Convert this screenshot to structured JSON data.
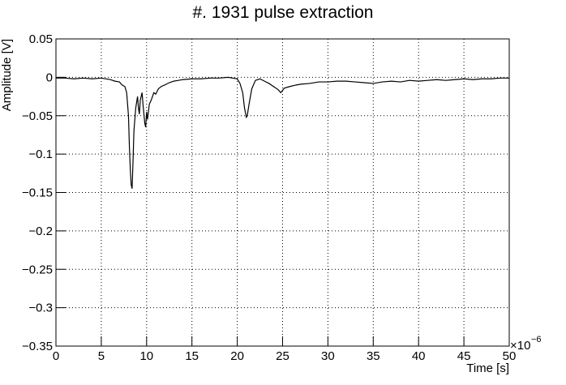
{
  "chart_data": {
    "type": "line",
    "title": "#. 1931 pulse extraction",
    "x_label": "Time [s]",
    "y_label": "Amplitude [V]",
    "x_multiplier": "×10",
    "x_exponent": "−6",
    "color": "#000000",
    "grid": true,
    "x": [
      0,
      1,
      2,
      3,
      4,
      5,
      6,
      6.5,
      7,
      7.3,
      7.6,
      7.8,
      8.0,
      8.1,
      8.2,
      8.3,
      8.4,
      8.5,
      8.6,
      8.8,
      9.0,
      9.1,
      9.2,
      9.3,
      9.5,
      9.6,
      9.8,
      9.9,
      10.0,
      10.1,
      10.3,
      10.5,
      10.8,
      11,
      11.3,
      11.6,
      12,
      12.5,
      13,
      13.5,
      14,
      15,
      16,
      17,
      18,
      19,
      20,
      20.3,
      20.6,
      20.8,
      21.0,
      21.1,
      21.3,
      21.6,
      22,
      22.5,
      23,
      23.5,
      24,
      24.5,
      24.8,
      25.2,
      25.8,
      26.5,
      27,
      28,
      29,
      30,
      31,
      32,
      33,
      34,
      35,
      36,
      37,
      38,
      39,
      40,
      41,
      42,
      43,
      44,
      45,
      46,
      47,
      48,
      49,
      50
    ],
    "values": [
      -0.001,
      -0.001,
      -0.002,
      -0.001,
      -0.002,
      -0.001,
      -0.003,
      -0.005,
      -0.006,
      -0.01,
      -0.012,
      -0.02,
      -0.05,
      -0.09,
      -0.12,
      -0.14,
      -0.145,
      -0.11,
      -0.07,
      -0.04,
      -0.025,
      -0.04,
      -0.048,
      -0.03,
      -0.02,
      -0.035,
      -0.06,
      -0.065,
      -0.045,
      -0.055,
      -0.035,
      -0.03,
      -0.02,
      -0.022,
      -0.015,
      -0.012,
      -0.01,
      -0.007,
      -0.005,
      -0.004,
      -0.003,
      -0.002,
      -0.002,
      -0.001,
      -0.001,
      0,
      -0.002,
      -0.008,
      -0.02,
      -0.04,
      -0.052,
      -0.05,
      -0.035,
      -0.015,
      -0.004,
      -0.002,
      -0.005,
      -0.008,
      -0.012,
      -0.016,
      -0.02,
      -0.014,
      -0.012,
      -0.01,
      -0.009,
      -0.008,
      -0.006,
      -0.006,
      -0.005,
      -0.005,
      -0.006,
      -0.007,
      -0.008,
      -0.006,
      -0.005,
      -0.006,
      -0.004,
      -0.005,
      -0.004,
      -0.003,
      -0.004,
      -0.003,
      -0.002,
      -0.003,
      -0.002,
      -0.002,
      -0.001,
      -0.001
    ],
    "xlim": [
      0,
      50
    ],
    "xticks": [
      0,
      5,
      10,
      15,
      20,
      25,
      30,
      35,
      40,
      45,
      50
    ],
    "ylim": [
      -0.35,
      0.05
    ],
    "yticks": [
      0.05,
      0,
      {
        "value": -0.05,
        "label": "−0.05"
      },
      {
        "value": -0.1,
        "label": "−0.1"
      },
      {
        "value": -0.15,
        "label": "−0.15"
      },
      {
        "value": -0.2,
        "label": "−0.2"
      },
      {
        "value": -0.25,
        "label": "−0.25"
      },
      {
        "value": -0.3,
        "label": "−0.3"
      },
      {
        "value": -0.35,
        "label": "−0.35"
      }
    ]
  }
}
